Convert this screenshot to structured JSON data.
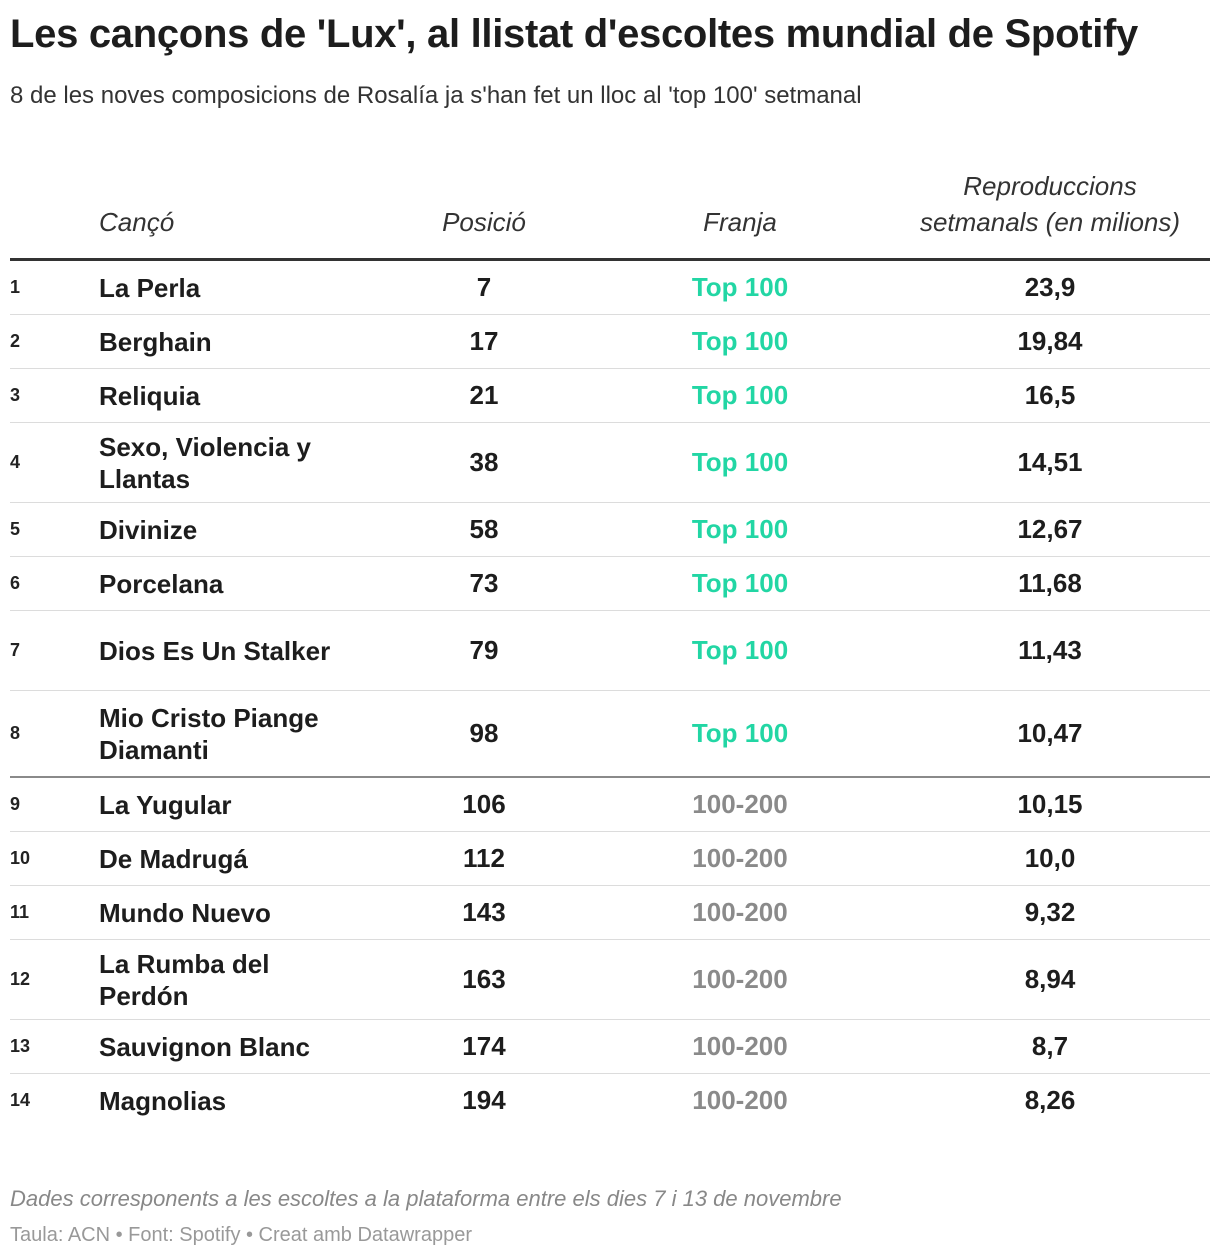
{
  "header": {
    "title": "Les cançons de 'Lux', al llistat d'escoltes mundial de Spotify",
    "subtitle": "8 de les noves composicions de Rosalía ja s'han fet un lloc al 'top 100' setmanal"
  },
  "colors": {
    "top100": "#22d6a4",
    "band_100_200": "#8a8a8a"
  },
  "chart_data": {
    "type": "table",
    "columns": {
      "song": "Cançó",
      "position": "Posició",
      "band": "Franja",
      "streams_line1": "Reproduccions",
      "streams_line2": "setmanals (en milions)"
    },
    "rows": [
      {
        "rank": "1",
        "song": "La Perla",
        "position": "7",
        "band": "Top 100",
        "streams": "23,9"
      },
      {
        "rank": "2",
        "song": "Berghain",
        "position": "17",
        "band": "Top 100",
        "streams": "19,84"
      },
      {
        "rank": "3",
        "song": "Reliquia",
        "position": "21",
        "band": "Top 100",
        "streams": "16,5"
      },
      {
        "rank": "4",
        "song": "Sexo, Violencia y Llantas",
        "position": "38",
        "band": "Top 100",
        "streams": "14,51"
      },
      {
        "rank": "5",
        "song": "Divinize",
        "position": "58",
        "band": "Top 100",
        "streams": "12,67"
      },
      {
        "rank": "6",
        "song": "Porcelana",
        "position": "73",
        "band": "Top 100",
        "streams": "11,68"
      },
      {
        "rank": "7",
        "song": "Dios Es Un Stalker",
        "position": "79",
        "band": "Top 100",
        "streams": "11,43"
      },
      {
        "rank": "8",
        "song": "Mio Cristo Piange Diamanti",
        "position": "98",
        "band": "Top 100",
        "streams": "10,47"
      },
      {
        "rank": "9",
        "song": "La Yugular",
        "position": "106",
        "band": "100-200",
        "streams": "10,15"
      },
      {
        "rank": "10",
        "song": "De Madrugá",
        "position": "112",
        "band": "100-200",
        "streams": "10,0"
      },
      {
        "rank": "11",
        "song": "Mundo Nuevo",
        "position": "143",
        "band": "100-200",
        "streams": "9,32"
      },
      {
        "rank": "12",
        "song": "La Rumba del Perdón",
        "position": "163",
        "band": "100-200",
        "streams": "8,94"
      },
      {
        "rank": "13",
        "song": "Sauvignon Blanc",
        "position": "174",
        "band": "100-200",
        "streams": "8,7"
      },
      {
        "rank": "14",
        "song": "Magnolias",
        "position": "194",
        "band": "100-200",
        "streams": "8,26"
      }
    ]
  },
  "footer": {
    "note": "Dades corresponents a les escoltes a la plataforma entre els dies 7 i 13 de novembre",
    "credit": "Taula: ACN • Font: Spotify • Creat amb Datawrapper"
  }
}
